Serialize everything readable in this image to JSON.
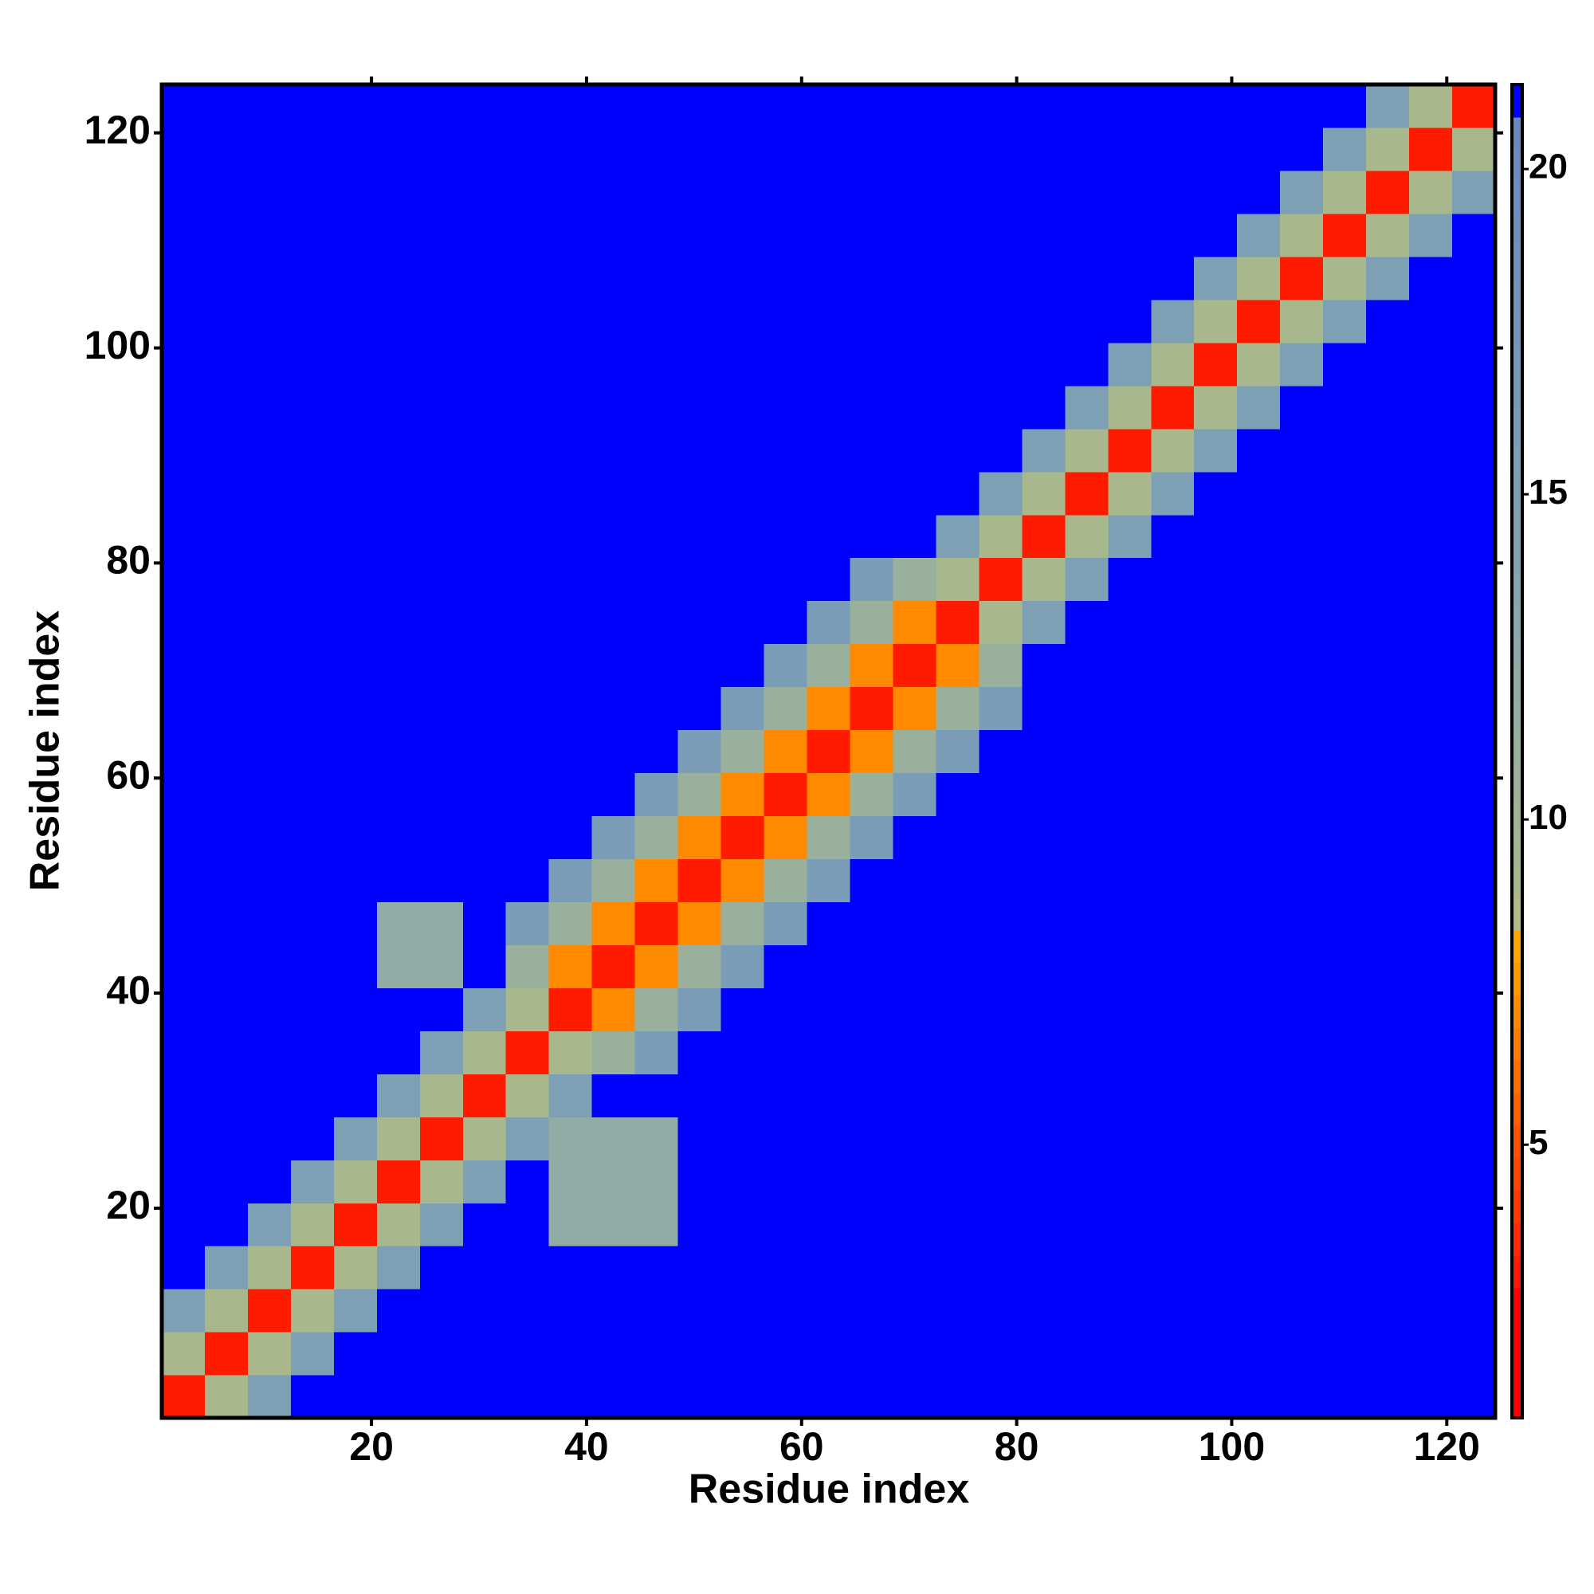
{
  "chart_data": {
    "type": "heatmap",
    "xlabel": "Residue index",
    "ylabel": "Residue index",
    "x": [
      2.5,
      6.5,
      10.5,
      14.5,
      18.5,
      22.5,
      26.5,
      30.5,
      34.5,
      38.5,
      42.5,
      46.5,
      50.5,
      54.5,
      58.5,
      62.5,
      66.5,
      70.5,
      74.5,
      78.5,
      82.5,
      86.5,
      90.5,
      94.5,
      98.5,
      102.5,
      106.5,
      110.5,
      114.5,
      118.5,
      122.5
    ],
    "y": [
      2.5,
      6.5,
      10.5,
      14.5,
      18.5,
      22.5,
      26.5,
      30.5,
      34.5,
      38.5,
      42.5,
      46.5,
      50.5,
      54.5,
      58.5,
      62.5,
      66.5,
      70.5,
      74.5,
      78.5,
      82.5,
      86.5,
      90.5,
      94.5,
      98.5,
      102.5,
      106.5,
      110.5,
      114.5,
      118.5,
      122.5
    ],
    "z": [
      [
        3,
        9,
        15,
        21,
        21,
        21,
        21,
        21,
        21,
        21,
        21,
        21,
        21,
        21,
        21,
        21,
        21,
        21,
        21,
        21,
        21,
        21,
        21,
        21,
        21,
        21,
        21,
        21,
        21,
        21,
        21
      ],
      [
        9,
        3,
        9,
        15,
        21,
        21,
        21,
        21,
        21,
        21,
        21,
        21,
        21,
        21,
        21,
        21,
        21,
        21,
        21,
        21,
        21,
        21,
        21,
        21,
        21,
        21,
        21,
        21,
        21,
        21,
        21
      ],
      [
        15,
        9,
        3,
        9,
        15,
        21,
        21,
        21,
        21,
        21,
        21,
        21,
        21,
        21,
        21,
        21,
        21,
        21,
        21,
        21,
        21,
        21,
        21,
        21,
        21,
        21,
        21,
        21,
        21,
        21,
        21
      ],
      [
        21,
        15,
        9,
        3,
        9,
        15,
        21,
        21,
        21,
        21,
        21,
        21,
        21,
        21,
        21,
        21,
        21,
        21,
        21,
        21,
        21,
        21,
        21,
        21,
        21,
        21,
        21,
        21,
        21,
        21,
        21
      ],
      [
        21,
        21,
        15,
        9,
        3,
        9,
        15,
        21,
        21,
        12,
        12,
        12,
        21,
        21,
        21,
        21,
        21,
        21,
        21,
        21,
        21,
        21,
        21,
        21,
        21,
        21,
        21,
        21,
        21,
        21,
        21
      ],
      [
        21,
        21,
        21,
        15,
        9,
        3,
        9,
        15,
        21,
        12,
        12,
        12,
        21,
        21,
        21,
        21,
        21,
        21,
        21,
        21,
        21,
        21,
        21,
        21,
        21,
        21,
        21,
        21,
        21,
        21,
        21
      ],
      [
        21,
        21,
        21,
        21,
        15,
        9,
        3,
        9,
        15,
        12,
        12,
        12,
        21,
        21,
        21,
        21,
        21,
        21,
        21,
        21,
        21,
        21,
        21,
        21,
        21,
        21,
        21,
        21,
        21,
        21,
        21
      ],
      [
        21,
        21,
        21,
        21,
        21,
        15,
        9,
        3,
        9,
        15,
        21,
        21,
        21,
        21,
        21,
        21,
        21,
        21,
        21,
        21,
        21,
        21,
        21,
        21,
        21,
        21,
        21,
        21,
        21,
        21,
        21
      ],
      [
        21,
        21,
        21,
        21,
        21,
        21,
        15,
        9,
        3,
        9,
        11,
        16,
        21,
        21,
        21,
        21,
        21,
        21,
        21,
        21,
        21,
        21,
        21,
        21,
        21,
        21,
        21,
        21,
        21,
        21,
        21
      ],
      [
        21,
        21,
        21,
        21,
        21,
        21,
        21,
        15,
        9,
        3,
        7,
        11,
        16,
        21,
        21,
        21,
        21,
        21,
        21,
        21,
        21,
        21,
        21,
        21,
        21,
        21,
        21,
        21,
        21,
        21,
        21
      ],
      [
        21,
        21,
        21,
        21,
        21,
        12,
        12,
        21,
        11,
        7,
        3,
        7,
        11,
        16,
        21,
        21,
        21,
        21,
        21,
        21,
        21,
        21,
        21,
        21,
        21,
        21,
        21,
        21,
        21,
        21,
        21
      ],
      [
        21,
        21,
        21,
        21,
        21,
        12,
        12,
        21,
        16,
        11,
        7,
        3,
        7,
        11,
        16,
        21,
        21,
        21,
        21,
        21,
        21,
        21,
        21,
        21,
        21,
        21,
        21,
        21,
        21,
        21,
        21
      ],
      [
        21,
        21,
        21,
        21,
        21,
        21,
        21,
        21,
        21,
        16,
        11,
        7,
        3,
        7,
        11,
        16,
        21,
        21,
        21,
        21,
        21,
        21,
        21,
        21,
        21,
        21,
        21,
        21,
        21,
        21,
        21
      ],
      [
        21,
        21,
        21,
        21,
        21,
        21,
        21,
        21,
        21,
        21,
        16,
        11,
        7,
        3,
        7,
        11,
        16,
        21,
        21,
        21,
        21,
        21,
        21,
        21,
        21,
        21,
        21,
        21,
        21,
        21,
        21
      ],
      [
        21,
        21,
        21,
        21,
        21,
        21,
        21,
        21,
        21,
        21,
        21,
        16,
        11,
        7,
        3,
        7,
        11,
        16,
        21,
        21,
        21,
        21,
        21,
        21,
        21,
        21,
        21,
        21,
        21,
        21,
        21
      ],
      [
        21,
        21,
        21,
        21,
        21,
        21,
        21,
        21,
        21,
        21,
        21,
        21,
        16,
        11,
        7,
        3,
        7,
        11,
        16,
        21,
        21,
        21,
        21,
        21,
        21,
        21,
        21,
        21,
        21,
        21,
        21
      ],
      [
        21,
        21,
        21,
        21,
        21,
        21,
        21,
        21,
        21,
        21,
        21,
        21,
        21,
        16,
        11,
        7,
        3,
        7,
        11,
        16,
        21,
        21,
        21,
        21,
        21,
        21,
        21,
        21,
        21,
        21,
        21
      ],
      [
        21,
        21,
        21,
        21,
        21,
        21,
        21,
        21,
        21,
        21,
        21,
        21,
        21,
        21,
        16,
        11,
        7,
        3,
        7,
        11,
        21,
        21,
        21,
        21,
        21,
        21,
        21,
        21,
        21,
        21,
        21
      ],
      [
        21,
        21,
        21,
        21,
        21,
        21,
        21,
        21,
        21,
        21,
        21,
        21,
        21,
        21,
        21,
        16,
        11,
        7,
        3,
        9,
        15,
        21,
        21,
        21,
        21,
        21,
        21,
        21,
        21,
        21,
        21
      ],
      [
        21,
        21,
        21,
        21,
        21,
        21,
        21,
        21,
        21,
        21,
        21,
        21,
        21,
        21,
        21,
        21,
        16,
        11,
        9,
        3,
        9,
        15,
        21,
        21,
        21,
        21,
        21,
        21,
        21,
        21,
        21
      ],
      [
        21,
        21,
        21,
        21,
        21,
        21,
        21,
        21,
        21,
        21,
        21,
        21,
        21,
        21,
        21,
        21,
        21,
        21,
        15,
        9,
        3,
        9,
        15,
        21,
        21,
        21,
        21,
        21,
        21,
        21,
        21
      ],
      [
        21,
        21,
        21,
        21,
        21,
        21,
        21,
        21,
        21,
        21,
        21,
        21,
        21,
        21,
        21,
        21,
        21,
        21,
        21,
        15,
        9,
        3,
        9,
        15,
        21,
        21,
        21,
        21,
        21,
        21,
        21
      ],
      [
        21,
        21,
        21,
        21,
        21,
        21,
        21,
        21,
        21,
        21,
        21,
        21,
        21,
        21,
        21,
        21,
        21,
        21,
        21,
        21,
        15,
        9,
        3,
        9,
        15,
        21,
        21,
        21,
        21,
        21,
        21
      ],
      [
        21,
        21,
        21,
        21,
        21,
        21,
        21,
        21,
        21,
        21,
        21,
        21,
        21,
        21,
        21,
        21,
        21,
        21,
        21,
        21,
        21,
        15,
        9,
        3,
        9,
        15,
        21,
        21,
        21,
        21,
        21
      ],
      [
        21,
        21,
        21,
        21,
        21,
        21,
        21,
        21,
        21,
        21,
        21,
        21,
        21,
        21,
        21,
        21,
        21,
        21,
        21,
        21,
        21,
        21,
        15,
        9,
        3,
        9,
        15,
        21,
        21,
        21,
        21
      ],
      [
        21,
        21,
        21,
        21,
        21,
        21,
        21,
        21,
        21,
        21,
        21,
        21,
        21,
        21,
        21,
        21,
        21,
        21,
        21,
        21,
        21,
        21,
        21,
        15,
        9,
        3,
        9,
        15,
        21,
        21,
        21
      ],
      [
        21,
        21,
        21,
        21,
        21,
        21,
        21,
        21,
        21,
        21,
        21,
        21,
        21,
        21,
        21,
        21,
        21,
        21,
        21,
        21,
        21,
        21,
        21,
        21,
        15,
        9,
        3,
        9,
        15,
        21,
        21
      ],
      [
        21,
        21,
        21,
        21,
        21,
        21,
        21,
        21,
        21,
        21,
        21,
        21,
        21,
        21,
        21,
        21,
        21,
        21,
        21,
        21,
        21,
        21,
        21,
        21,
        21,
        15,
        9,
        3,
        9,
        15,
        21
      ],
      [
        21,
        21,
        21,
        21,
        21,
        21,
        21,
        21,
        21,
        21,
        21,
        21,
        21,
        21,
        21,
        21,
        21,
        21,
        21,
        21,
        21,
        21,
        21,
        21,
        21,
        21,
        15,
        9,
        3,
        9,
        15
      ],
      [
        21,
        21,
        21,
        21,
        21,
        21,
        21,
        21,
        21,
        21,
        21,
        21,
        21,
        21,
        21,
        21,
        21,
        21,
        21,
        21,
        21,
        21,
        21,
        21,
        21,
        21,
        21,
        15,
        9,
        3,
        9
      ],
      [
        21,
        21,
        21,
        21,
        21,
        21,
        21,
        21,
        21,
        21,
        21,
        21,
        21,
        21,
        21,
        21,
        21,
        21,
        21,
        21,
        21,
        21,
        21,
        21,
        21,
        21,
        21,
        21,
        15,
        9,
        3
      ]
    ],
    "xlim": [
      0.5,
      124.5
    ],
    "ylim": [
      0.5,
      124.5
    ],
    "xticks": [
      20,
      40,
      60,
      80,
      100,
      120
    ],
    "yticks": [
      20,
      40,
      60,
      80,
      100,
      120
    ],
    "zlim": [
      0.8,
      21.3
    ],
    "zticks": [
      5,
      10,
      15,
      20
    ],
    "colorscale": [
      "#ff0000",
      "#ff0000",
      "#ff0000",
      "#ff0000",
      "#ff1a00",
      "#ff2a00",
      "#ff3a00",
      "#ff4500",
      "#ff5200",
      "#ff6000",
      "#ff6e00",
      "#ff7c00",
      "#ff8a00",
      "#ff9800",
      "#ffa500",
      "#b0bc88",
      "#a8b88c",
      "#a4b690",
      "#a0b494",
      "#9cb298",
      "#98b09c",
      "#94aea0",
      "#90aca4",
      "#8caaa8",
      "#88a8ac",
      "#84a6b0",
      "#82a4b2",
      "#80a2b4",
      "#7ea0b5",
      "#7c9eb6",
      "#7a9cb7",
      "#789ab8",
      "#7698b9",
      "#7496ba",
      "#7294bb",
      "#7092bc",
      "#6e90bd",
      "#6c8ebe",
      "#6a8cbf",
      "#6888c0",
      "#0000ff"
    ]
  }
}
